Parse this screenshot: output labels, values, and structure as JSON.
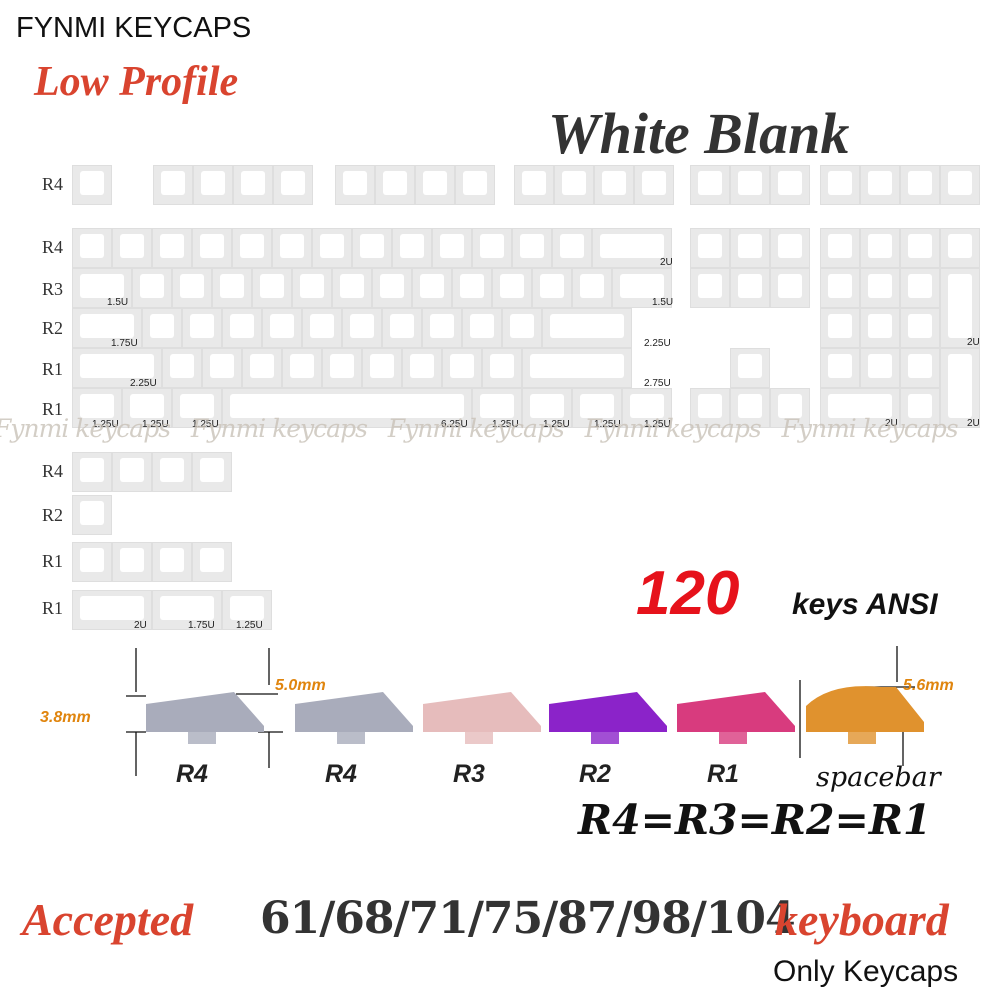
{
  "brand": "FYNMI KEYCAPS",
  "profile": "Low Profile",
  "color_name": "White Blank",
  "row_labels": {
    "fn": "R4",
    "r4": "R4",
    "r3": "R3",
    "r2": "R2",
    "r1a": "R1",
    "r1b": "R1",
    "x_r4": "R4",
    "x_r2": "R2",
    "x_r1a": "R1",
    "x_r1b": "R1"
  },
  "unit_labels": {
    "backspace": "2U",
    "tab": "1.5U",
    "backslash": "1.5U",
    "caps": "1.75U",
    "enter": "2.25U",
    "lshift": "2.25U",
    "rshift": "2.75U",
    "lctrl": "1.25U",
    "lwin": "1.25U",
    "lalt": "1.25U",
    "space": "6.25U",
    "ralt": "1.25U",
    "rwin": "1.25U",
    "menu": "1.25U",
    "rctrl": "1.25U",
    "num_plus": "2U",
    "num_zero": "2U",
    "num_enter": "2U",
    "extra_2u": "2U",
    "extra_175": "1.75U",
    "extra_125": "1.25U"
  },
  "watermark": "Fynmi keycaps",
  "key_count": "120",
  "keys_layout": "keys ANSI",
  "profiles": [
    {
      "label": "R4",
      "color": "#a9acbb"
    },
    {
      "label": "R4",
      "color": "#a9acbb"
    },
    {
      "label": "R3",
      "color": "#e6bcbc"
    },
    {
      "label": "R2",
      "color": "#8b23c9"
    },
    {
      "label": "R1",
      "color": "#d83b7e"
    },
    {
      "label": "spacebar",
      "color": "#e0922e"
    }
  ],
  "dimensions": {
    "low": "3.8mm",
    "high": "5.0mm",
    "spacebar": "5.6mm"
  },
  "equation": "R4=R3=R2=R1",
  "accepted": "Accepted",
  "layouts": "61/68/71/75/87/98/104",
  "keyboard": "keyboard",
  "only": "Only Keycaps"
}
